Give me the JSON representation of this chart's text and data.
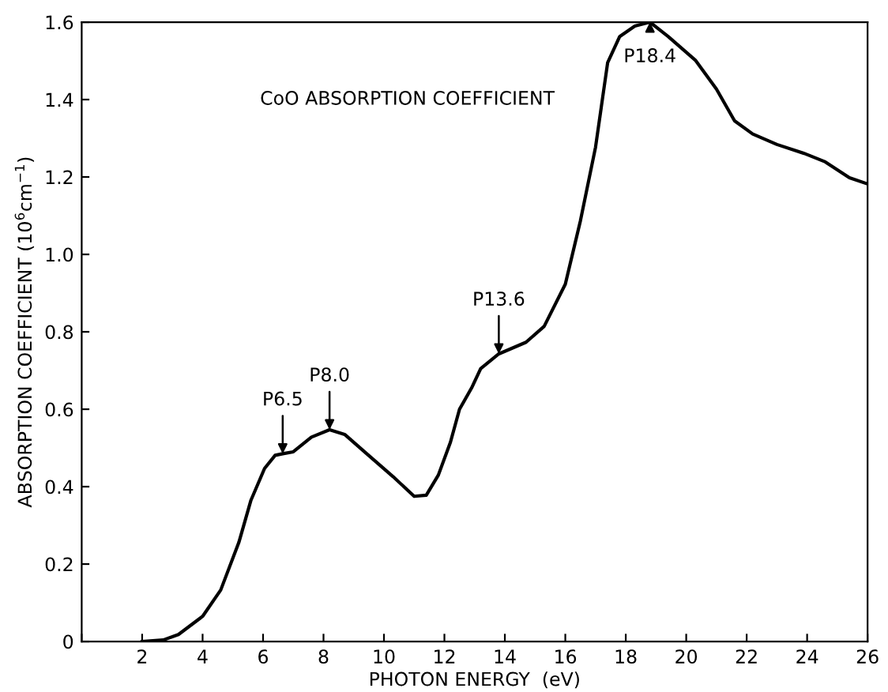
{
  "chart_data": {
    "type": "line",
    "title": "CoO ABSORPTION COEFFICIENT",
    "xlabel": "PHOTON ENERGY  (eV)",
    "ylabel": "ABSORPTION COEFFICIENT (10$^{6}$cm$^{−1}$)",
    "series": [
      {
        "color": "#000000",
        "x": [
          2.0,
          2.7,
          3.2,
          4.0,
          4.6,
          5.2,
          5.6,
          6.05,
          6.4,
          6.65,
          7.0,
          7.6,
          8.2,
          8.7,
          9.4,
          10.3,
          11.0,
          11.4,
          11.8,
          12.2,
          12.5,
          12.9,
          13.2,
          13.8,
          14.7,
          15.3,
          16.0,
          16.5,
          17.0,
          17.4,
          17.8,
          18.3,
          18.8,
          19.4,
          20.3,
          21.0,
          21.6,
          22.2,
          23.0,
          23.9,
          24.6,
          25.4,
          26.0
        ],
        "values": [
          0,
          0.004,
          0.018,
          0.065,
          0.133,
          0.256,
          0.365,
          0.447,
          0.481,
          0.485,
          0.49,
          0.528,
          0.547,
          0.535,
          0.487,
          0.426,
          0.375,
          0.378,
          0.43,
          0.515,
          0.6,
          0.655,
          0.705,
          0.743,
          0.773,
          0.814,
          0.923,
          1.087,
          1.277,
          1.495,
          1.563,
          1.59,
          1.6,
          1.563,
          1.502,
          1.427,
          1.345,
          1.311,
          1.284,
          1.261,
          1.239,
          1.198,
          1.182
        ]
      }
    ],
    "annotations": [
      {
        "text": "P6.5",
        "x": 6.65,
        "y": 0.485
      },
      {
        "text": "P8.0",
        "x": 8.2,
        "y": 0.547
      },
      {
        "text": "P13.6",
        "x": 13.8,
        "y": 0.743
      },
      {
        "text": "P18.4",
        "x": 18.8,
        "y": 1.6
      }
    ],
    "xlim": [
      0,
      26
    ],
    "xticks": [
      {
        "value": 0,
        "label": null
      },
      2,
      4,
      6,
      8,
      10,
      12,
      14,
      16,
      18,
      20,
      22,
      24,
      26
    ],
    "ylim": [
      0,
      1.6
    ],
    "yticks": [
      0,
      0.2,
      0.4,
      0.6,
      0.8,
      {
        "value": 1,
        "label": "1.0"
      },
      1.2,
      1.4,
      1.6
    ],
    "grid": false,
    "legend": false,
    "marker": "none",
    "line_style": "solid"
  }
}
